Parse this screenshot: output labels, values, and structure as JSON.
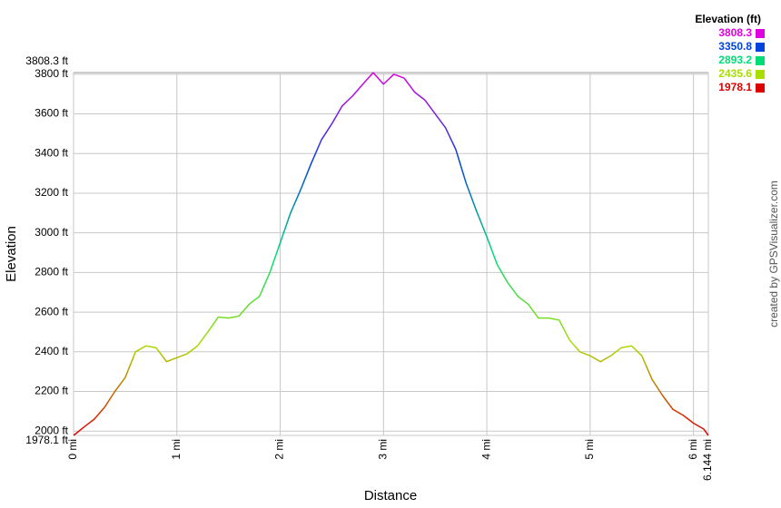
{
  "chart_data": {
    "type": "line",
    "x_label": "Distance",
    "y_label": "Elevation",
    "credit": "created by GPSVisualizer.com",
    "xlim": [
      0,
      6.144
    ],
    "ylim": [
      1978.1,
      3808.3
    ],
    "xticks": [
      {
        "value": 0,
        "label": "0 mi"
      },
      {
        "value": 1,
        "label": "1 mi"
      },
      {
        "value": 2,
        "label": "2 mi"
      },
      {
        "value": 3,
        "label": "3 mi"
      },
      {
        "value": 4,
        "label": "4 mi"
      },
      {
        "value": 5,
        "label": "5 mi"
      },
      {
        "value": 6,
        "label": "6 mi"
      },
      {
        "value": 6.144,
        "label": "6.144 mi"
      }
    ],
    "yticks": [
      {
        "value": 1978.1,
        "label": "1978.1 ft"
      },
      {
        "value": 2000,
        "label": "2000 ft"
      },
      {
        "value": 2200,
        "label": "2200 ft"
      },
      {
        "value": 2400,
        "label": "2400 ft"
      },
      {
        "value": 2600,
        "label": "2600 ft"
      },
      {
        "value": 2800,
        "label": "2800 ft"
      },
      {
        "value": 3000,
        "label": "3000 ft"
      },
      {
        "value": 3200,
        "label": "3200 ft"
      },
      {
        "value": 3400,
        "label": "3400 ft"
      },
      {
        "value": 3600,
        "label": "3600 ft"
      },
      {
        "value": 3800,
        "label": "3800 ft"
      },
      {
        "value": 3808.3,
        "label": "3808.3 ft"
      }
    ],
    "grid": true,
    "legend": {
      "title": "Elevation (ft)",
      "position": "top-right",
      "values": [
        3808.3,
        3350.8,
        2893.2,
        2435.6,
        1978.1
      ],
      "colors": [
        "#e000e0",
        "#0044dd",
        "#00dd77",
        "#aadd00",
        "#dd0000"
      ]
    },
    "x": [
      0,
      0.1,
      0.2,
      0.3,
      0.4,
      0.5,
      0.6,
      0.7,
      0.8,
      0.9,
      1.0,
      1.1,
      1.2,
      1.3,
      1.4,
      1.5,
      1.6,
      1.7,
      1.8,
      1.9,
      2.0,
      2.1,
      2.2,
      2.3,
      2.4,
      2.5,
      2.6,
      2.7,
      2.8,
      2.9,
      3.0,
      3.1,
      3.2,
      3.3,
      3.4,
      3.5,
      3.6,
      3.7,
      3.8,
      3.9,
      4.0,
      4.1,
      4.2,
      4.3,
      4.4,
      4.5,
      4.6,
      4.7,
      4.8,
      4.9,
      5.0,
      5.1,
      5.2,
      5.3,
      5.4,
      5.5,
      5.6,
      5.7,
      5.8,
      5.9,
      6.0,
      6.1,
      6.144
    ],
    "series": [
      {
        "name": "Elevation",
        "values": [
          1978,
          2020,
          2060,
          2120,
          2200,
          2270,
          2400,
          2430,
          2420,
          2350,
          2370,
          2390,
          2430,
          2500,
          2575,
          2570,
          2580,
          2640,
          2680,
          2800,
          2950,
          3100,
          3220,
          3350,
          3470,
          3550,
          3640,
          3690,
          3750,
          3808,
          3750,
          3800,
          3780,
          3710,
          3670,
          3600,
          3530,
          3420,
          3250,
          3110,
          2980,
          2840,
          2750,
          2680,
          2640,
          2570,
          2570,
          2560,
          2460,
          2400,
          2380,
          2350,
          2380,
          2420,
          2430,
          2380,
          2260,
          2180,
          2110,
          2080,
          2040,
          2010,
          1978
        ]
      }
    ]
  }
}
